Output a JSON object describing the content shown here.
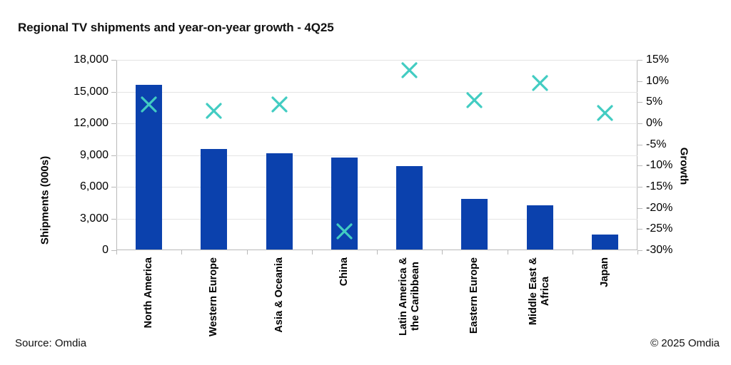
{
  "title": "Regional TV shipments and year-on-year growth - 4Q25",
  "source": "Source: Omdia",
  "copyright": "© 2025 Omdia",
  "colors": {
    "bar": "#0b41ad",
    "marker": "#42ccc2",
    "grid": "#e4e4e4",
    "axis": "#b9b9b9",
    "text": "#000000"
  },
  "chart_data": {
    "type": "combo-bar-scatter",
    "title": "Regional TV shipments and year-on-year growth - 4Q25",
    "categories": [
      "North America",
      "Western Europe",
      "Asia & Oceania",
      "China",
      "Latin America &\nthe Caribbean",
      "Eastern Europe",
      "Middle East &\nAfrica",
      "Japan"
    ],
    "series": [
      {
        "name": "Shipments (000s)",
        "type": "bar",
        "axis": "left",
        "values": [
          15600,
          9500,
          9100,
          8700,
          7900,
          4800,
          4200,
          1400
        ]
      },
      {
        "name": "Growth",
        "type": "scatter",
        "marker": "x",
        "axis": "right",
        "values": [
          4.5,
          3,
          4.5,
          -25.5,
          12.5,
          5.5,
          9.5,
          2.5
        ]
      }
    ],
    "left_axis": {
      "label": "Shipments (000s)",
      "min": 0,
      "max": 18000,
      "step": 3000,
      "ticks": [
        "18,000",
        "15,000",
        "12,000",
        "9,000",
        "6,000",
        "3,000",
        "0"
      ]
    },
    "right_axis": {
      "label": "Growth",
      "min": -30,
      "max": 15,
      "step": 5,
      "ticks": [
        "15%",
        "10%",
        "5%",
        "0%",
        "-5%",
        "-10%",
        "-15%",
        "-20%",
        "-25%",
        "-30%"
      ]
    },
    "grid": true,
    "legend": "none"
  }
}
